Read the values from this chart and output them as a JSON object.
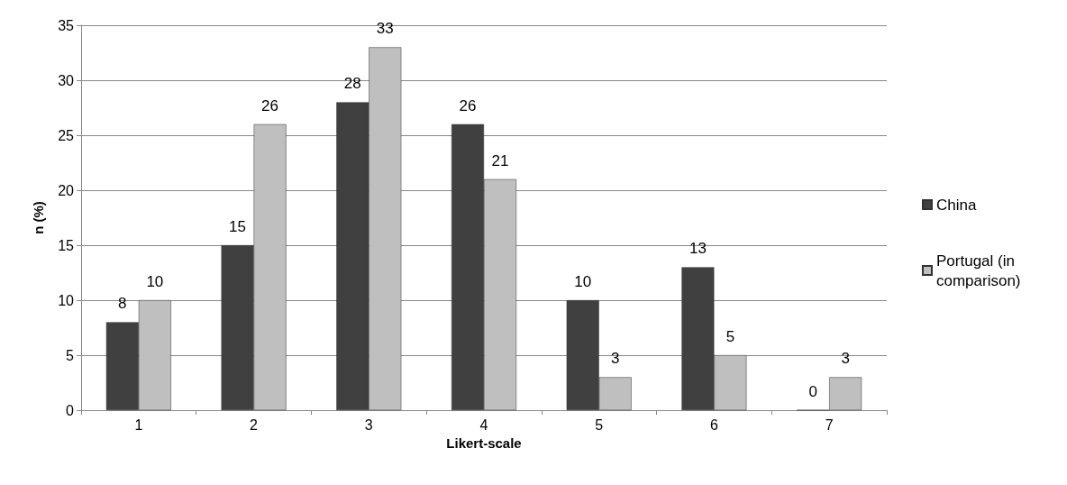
{
  "chart_data": {
    "type": "bar",
    "xlabel": "Likert-scale",
    "ylabel": "n (%)",
    "categories": [
      "1",
      "2",
      "3",
      "4",
      "5",
      "6",
      "7"
    ],
    "series": [
      {
        "name": "China",
        "color": "#404040",
        "values": [
          8,
          15,
          28,
          26,
          10,
          13,
          0
        ]
      },
      {
        "name": "Portugal (in comparison)",
        "color": "#bfbfbf",
        "values": [
          10,
          26,
          33,
          21,
          3,
          5,
          3
        ]
      }
    ],
    "ylim": [
      0,
      35
    ],
    "yticks": [
      0,
      5,
      10,
      15,
      20,
      25,
      30,
      35
    ],
    "grid": "y",
    "legend": "right",
    "data_labels": true
  }
}
